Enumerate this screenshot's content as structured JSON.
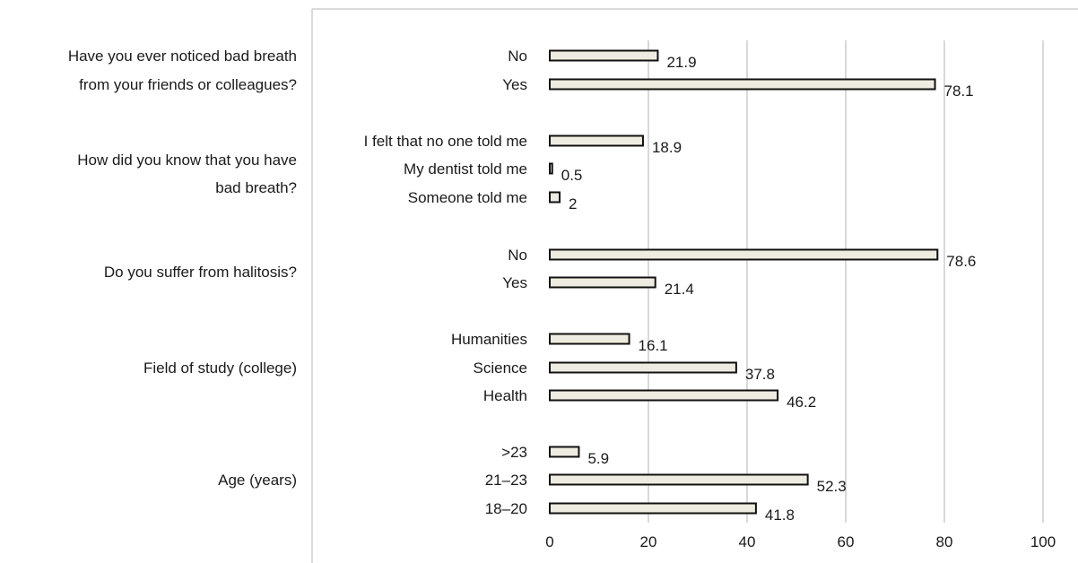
{
  "chart_data": {
    "type": "bar",
    "orientation": "horizontal",
    "xlim": [
      0,
      100
    ],
    "x_ticks": [
      "0",
      "20",
      "40",
      "60",
      "80",
      "100"
    ],
    "grid": "vertical",
    "colors": {
      "bar_fill": "#eeebe0",
      "bar_stroke": "#111111",
      "grid": "#d9d9d9",
      "frame": "#cfcfcf"
    },
    "groups": [
      {
        "question": [
          "Have you ever noticed bad breath",
          "from your friends or colleagues?"
        ],
        "bars": [
          {
            "label": "No",
            "value": 21.9,
            "value_label": "21.9"
          },
          {
            "label": "Yes",
            "value": 78.1,
            "value_label": "78.1"
          }
        ]
      },
      {
        "question": [
          "How did you know that you have",
          "bad breath?"
        ],
        "bars": [
          {
            "label": "I felt that no one told me",
            "value": 18.9,
            "value_label": "18.9"
          },
          {
            "label": "My dentist told me",
            "value": 0.5,
            "value_label": "0.5"
          },
          {
            "label": "Someone told me",
            "value": 2,
            "value_label": "2"
          }
        ]
      },
      {
        "question": [
          "Do you suffer from halitosis?"
        ],
        "bars": [
          {
            "label": "No",
            "value": 78.6,
            "value_label": "78.6"
          },
          {
            "label": "Yes",
            "value": 21.4,
            "value_label": "21.4"
          }
        ]
      },
      {
        "question": [
          "Field of study (college)"
        ],
        "bars": [
          {
            "label": "Humanities",
            "value": 16.1,
            "value_label": "16.1"
          },
          {
            "label": "Science",
            "value": 37.8,
            "value_label": "37.8"
          },
          {
            "label": "Health",
            "value": 46.2,
            "value_label": "46.2"
          }
        ]
      },
      {
        "question": [
          "Age (years)"
        ],
        "bars": [
          {
            "label": ">23",
            "value": 5.9,
            "value_label": "5.9"
          },
          {
            "label": "21–23",
            "value": 52.3,
            "value_label": "52.3"
          },
          {
            "label": "18–20",
            "value": 41.8,
            "value_label": "41.8"
          }
        ]
      }
    ]
  }
}
